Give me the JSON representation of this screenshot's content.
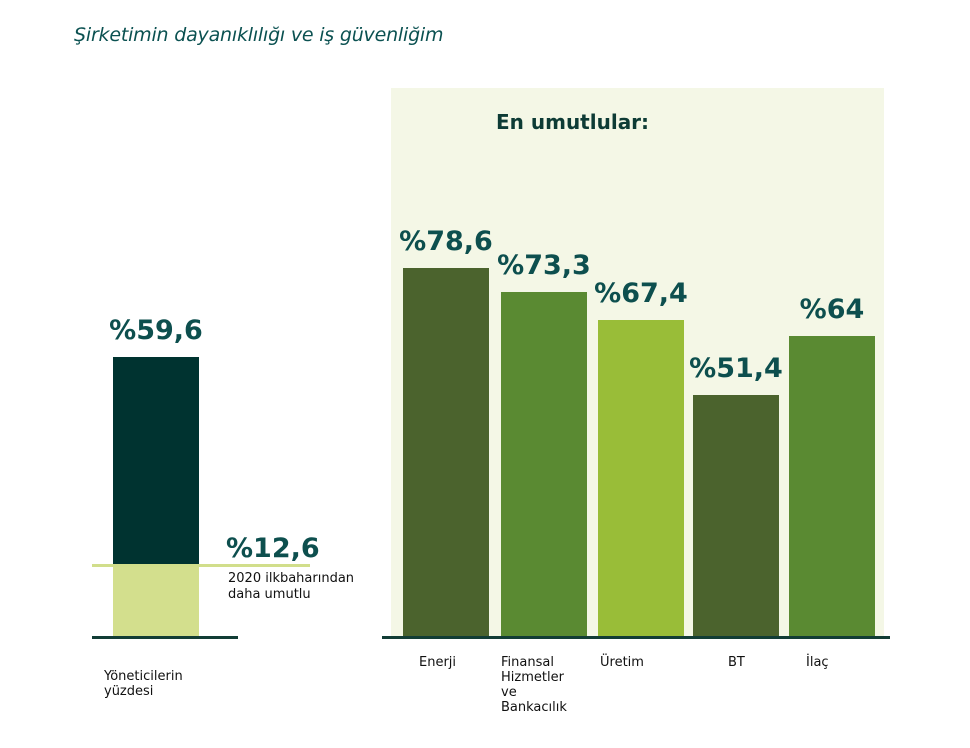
{
  "title": "Şirketimin dayanıklılığı ve iş güvenliğim",
  "chart_data": [
    {
      "type": "bar",
      "categories": [
        "Yöneticilerin yüzdesi"
      ],
      "values": [
        59.6
      ],
      "value_labels": [
        "%59,6"
      ],
      "reference": {
        "value": 12.6,
        "label": "%12,6",
        "caption": "2020 ilkbaharından daha umutlu"
      },
      "colors": {
        "bar": "#003330",
        "reference_fill": "#d3df8d"
      },
      "ylim": [
        0,
        100
      ]
    },
    {
      "type": "bar",
      "title": "En umutlular:",
      "categories": [
        "Enerji",
        "Finansal Hizmetler ve Bankacılık",
        "Üretim",
        "BT",
        "İlaç"
      ],
      "values": [
        78.6,
        73.3,
        67.4,
        51.4,
        64
      ],
      "value_labels": [
        "%78,6",
        "%73,3",
        "%67,4",
        "%51,4",
        "%64"
      ],
      "colors": [
        "#4b632d",
        "#5a8a32",
        "#99bd38",
        "#4b632d",
        "#5a8a32"
      ],
      "ylim": [
        0,
        100
      ]
    }
  ],
  "labels": {
    "left_category_lines": [
      "Yöneticilerin",
      "yüzdesi"
    ],
    "right_category_lines": [
      [
        "Enerji"
      ],
      [
        "Finansal",
        "Hizmetler",
        "ve",
        "Bankacılık"
      ],
      [
        "Üretim"
      ],
      [
        "BT"
      ],
      [
        "İlaç"
      ]
    ],
    "reference_caption_lines": [
      "2020 ilkbaharından",
      "daha umutlu"
    ]
  }
}
